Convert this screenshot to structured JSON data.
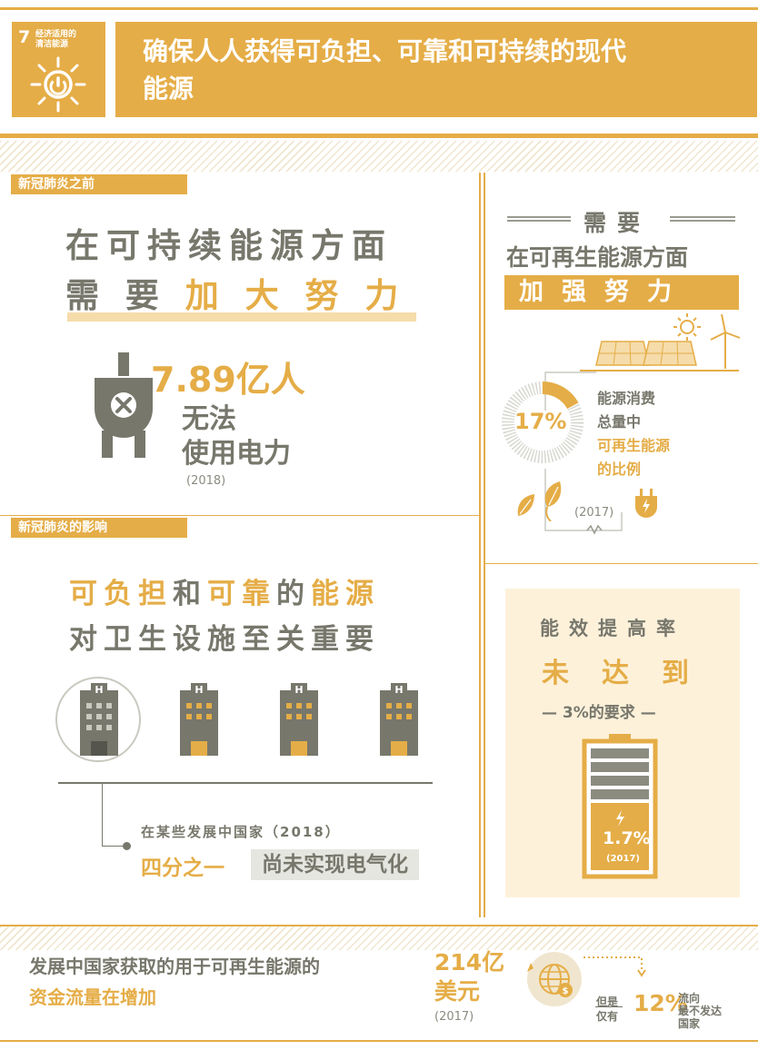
{
  "header": {
    "goal_number": "7",
    "goal_label": "经济适用的\n清洁能源",
    "title_line1": "确保人人获得可负担、可靠和可持续的现代",
    "title_line2": "能源"
  },
  "before_covid": {
    "tag": "新冠肺炎之前",
    "headline_line1": "在可持续能源方面",
    "headline_line2_gray": "需 要 ",
    "headline_line2_gold": "加 大 努 力",
    "people_number": "7.89亿人",
    "no_access_line1": "无法",
    "no_access_line2": "使用电力",
    "year": "(2018)"
  },
  "renewables": {
    "need": "需要",
    "aspect": "在可再生能源方面",
    "strengthen": "加强努力",
    "share_percent": "17%",
    "share_value": 0.17,
    "share_line1": "能源消费",
    "share_line2": "总量中",
    "share_line3": "可再生能源",
    "share_line4": "的比例",
    "year": "(2017)"
  },
  "impact": {
    "tag": "新冠肺炎的影响",
    "line1_gold_a": "可负担",
    "line1_gray_a": "和",
    "line1_gold_b": "可靠",
    "line1_gray_b": "的",
    "line1_gold_c": "能源",
    "line2": "对卫生设施至关重要",
    "building_letter": "H",
    "some_countries": "在某些发展中国家（2018）",
    "quarter": "四分之一",
    "not_electrified": "尚未实现电气化"
  },
  "efficiency": {
    "line1": "能效提高率",
    "line2": "未达到",
    "requirement": "— 3%的要求 —",
    "battery_percent": "1.7%",
    "battery_year": "(2017)"
  },
  "finance": {
    "line1": "发展中国家获取的用于可再生能源的",
    "line2": "资金流量在增加",
    "amount_line1": "214亿",
    "amount_line2": "美元",
    "year": "(2017)",
    "only_1": "但是",
    "only_2": "仅有",
    "percent": "12%",
    "to_1": "流向",
    "to_2": "最不发达",
    "to_3": "国家"
  },
  "colors": {
    "gold": "#e5ad47",
    "gray": "#77776c",
    "light_gold": "#f5dcaa",
    "cream": "#fdf1da"
  },
  "icons": [
    "sun-power-icon",
    "unplugged-plug-icon",
    "solar-panel-icon",
    "sun-icon",
    "wind-turbine-icon",
    "leaf-icon",
    "plug-bolt-icon",
    "hospital-building-icon",
    "battery-icon",
    "globe-dollar-icon"
  ]
}
